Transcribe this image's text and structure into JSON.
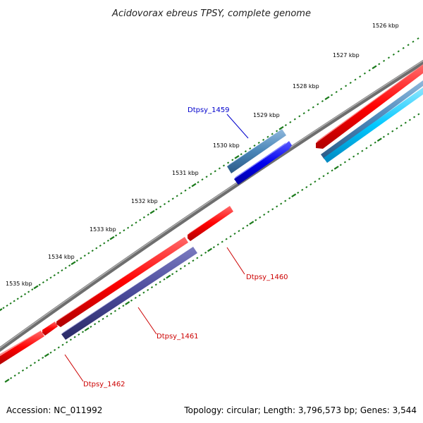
{
  "title": "Acidovorax ebreus TPSY, complete genome",
  "footer": {
    "accession": "Accession: NC_011992",
    "summary": "Topology: circular; Length: 3,796,573 bp; Genes: 3,544"
  },
  "kbp_labels": [
    "1526 kbp",
    "1527 kbp",
    "1528 kbp",
    "1529 kbp",
    "1530 kbp",
    "1531 kbp",
    "1532 kbp",
    "1533 kbp",
    "1534 kbp",
    "1535 kbp"
  ],
  "genes": [
    {
      "name": "Dtpsy_1459",
      "color": "#0000cc"
    },
    {
      "name": "Dtpsy_1460",
      "color": "#cc0000"
    },
    {
      "name": "Dtpsy_1461",
      "color": "#cc0000"
    },
    {
      "name": "Dtpsy_1462",
      "color": "#cc0000"
    }
  ],
  "colors": {
    "backbone": "#8a8a8a",
    "forward_cds": "#ff0000",
    "reverse_cds": "#4a4a9a",
    "blue_cds": "#0000ee",
    "steelblue_cds": "#4a86b8",
    "cyan_cds": "#00c8ff",
    "tick": "#1a7a1a"
  }
}
